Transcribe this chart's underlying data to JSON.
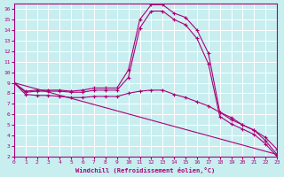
{
  "xlabel": "Windchill (Refroidissement éolien,°C)",
  "bg_color": "#c8eef0",
  "line_color": "#aa0077",
  "grid_color": "#ffffff",
  "xlim": [
    0,
    23
  ],
  "ylim": [
    2,
    16.5
  ],
  "yticks": [
    2,
    3,
    4,
    5,
    6,
    7,
    8,
    9,
    10,
    11,
    12,
    13,
    14,
    15,
    16
  ],
  "xticks": [
    0,
    1,
    2,
    3,
    4,
    5,
    6,
    7,
    8,
    9,
    10,
    11,
    12,
    13,
    14,
    15,
    16,
    17,
    18,
    19,
    20,
    21,
    22,
    23
  ],
  "lines": [
    {
      "x": [
        0,
        1,
        2,
        3,
        4,
        5,
        6,
        7,
        8,
        9,
        10,
        11,
        12,
        13,
        14,
        15,
        16,
        17,
        18,
        19,
        20,
        21,
        22,
        23
      ],
      "y": [
        9.0,
        8.2,
        8.3,
        8.3,
        8.3,
        8.2,
        8.3,
        8.5,
        8.5,
        8.5,
        10.2,
        15.0,
        16.4,
        16.4,
        15.6,
        15.2,
        14.0,
        11.8,
        6.2,
        5.5,
        5.0,
        4.5,
        3.5,
        2.2
      ],
      "straight": false
    },
    {
      "x": [
        0,
        1,
        2,
        3,
        4,
        5,
        6,
        7,
        8,
        9,
        10,
        11,
        12,
        13,
        14,
        15,
        16,
        17,
        18,
        19,
        20,
        21,
        22,
        23
      ],
      "y": [
        9.0,
        8.1,
        8.2,
        8.2,
        8.2,
        8.1,
        8.1,
        8.3,
        8.3,
        8.3,
        9.5,
        14.2,
        15.8,
        15.8,
        15.0,
        14.5,
        13.2,
        10.8,
        5.8,
        5.1,
        4.6,
        4.1,
        3.2,
        2.0
      ],
      "straight": false
    },
    {
      "x": [
        0,
        1,
        2,
        3,
        4,
        5,
        6,
        7,
        8,
        9,
        10,
        11,
        12,
        13,
        14,
        15,
        16,
        17,
        18,
        19,
        20,
        21,
        22,
        23
      ],
      "y": [
        9.0,
        7.9,
        7.8,
        7.8,
        7.7,
        7.6,
        7.6,
        7.7,
        7.7,
        7.7,
        8.0,
        8.2,
        8.3,
        8.3,
        7.9,
        7.6,
        7.2,
        6.8,
        6.2,
        5.7,
        5.0,
        4.5,
        3.8,
        2.7
      ],
      "straight": false
    },
    {
      "x": [
        0,
        23
      ],
      "y": [
        9.0,
        2.2
      ],
      "straight": true
    }
  ]
}
